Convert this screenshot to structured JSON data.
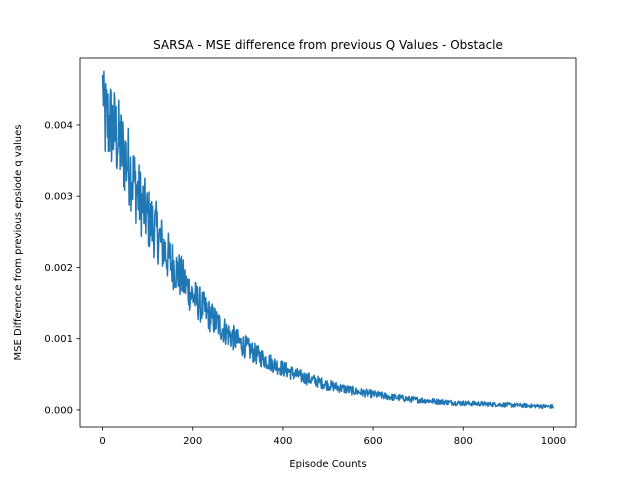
{
  "chart_data": {
    "type": "line",
    "title": "SARSA - MSE difference from previous Q Values - Obstacle",
    "xlabel": "Episode Counts",
    "ylabel": "MSE Difference from previous epsiode q values",
    "xlim": [
      -50,
      1050
    ],
    "ylim": [
      -0.00024,
      0.00494
    ],
    "xticks": [
      0,
      200,
      400,
      600,
      800,
      1000
    ],
    "xtick_labels": [
      "0",
      "200",
      "400",
      "600",
      "800",
      "1000"
    ],
    "yticks": [
      0.0,
      0.001,
      0.002,
      0.003,
      0.004
    ],
    "ytick_labels": [
      "0.000",
      "0.001",
      "0.002",
      "0.003",
      "0.004"
    ],
    "grid": false,
    "legend": "none",
    "series": [
      {
        "color": "#1f77b4",
        "x": [
          0,
          20,
          40,
          60,
          80,
          100,
          120,
          140,
          160,
          180,
          200,
          220,
          240,
          260,
          280,
          300,
          320,
          340,
          360,
          380,
          400,
          420,
          440,
          460,
          480,
          500,
          520,
          540,
          560,
          580,
          600,
          620,
          640,
          660,
          680,
          700,
          720,
          740,
          760,
          780,
          800,
          820,
          840,
          860,
          880,
          900,
          920,
          940,
          960,
          980,
          1000
        ],
        "y": [
          0.0041,
          0.004,
          0.0037,
          0.0034,
          0.003,
          0.0027,
          0.0025,
          0.0022,
          0.002,
          0.0018,
          0.0016,
          0.00145,
          0.0013,
          0.00118,
          0.00106,
          0.00096,
          0.00087,
          0.00078,
          0.00071,
          0.00064,
          0.00058,
          0.00052,
          0.00047,
          0.00043,
          0.00039,
          0.00035,
          0.00032,
          0.00029,
          0.00026,
          0.00024,
          0.00022,
          0.0002,
          0.00018,
          0.00017,
          0.00015,
          0.00014,
          0.00013,
          0.00012,
          0.00011,
          0.0001,
          9.5e-05,
          9e-05,
          8.5e-05,
          8e-05,
          7.5e-05,
          7e-05,
          6.5e-05,
          6e-05,
          5.5e-05,
          5e-05,
          4.5e-05
        ]
      }
    ]
  }
}
